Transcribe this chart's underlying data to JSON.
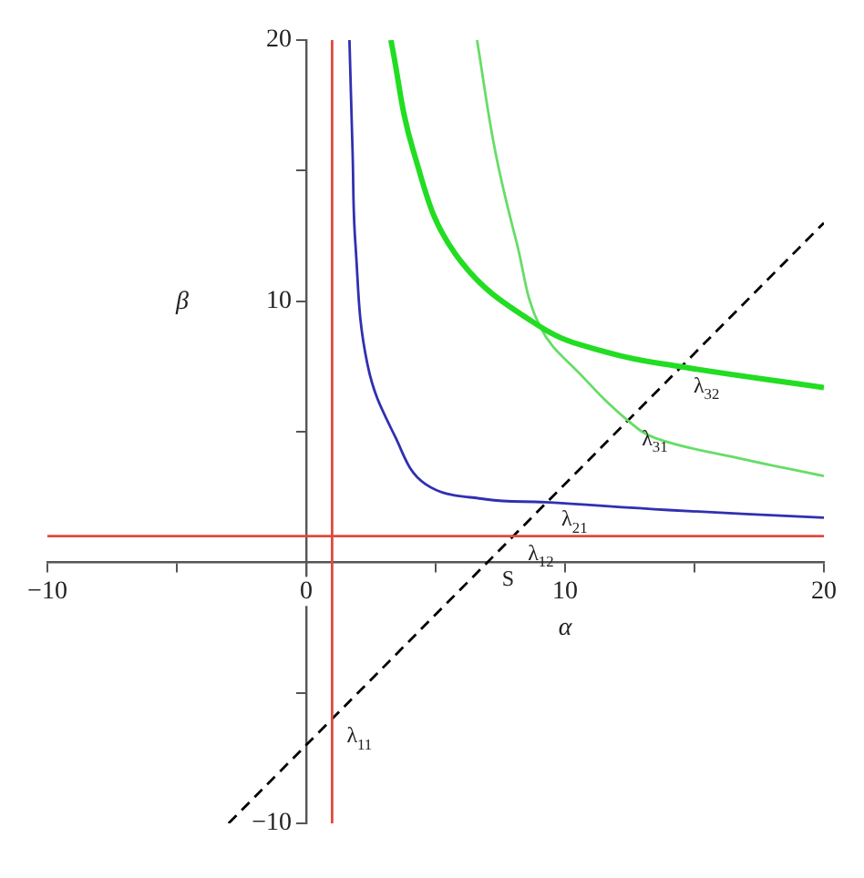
{
  "chart_data": {
    "type": "line",
    "xlabel": "α",
    "ylabel": "β",
    "marker": "none",
    "grid": false,
    "legend": false,
    "xlim": [
      -10,
      20
    ],
    "ylim": [
      -10,
      20
    ],
    "xticks": [
      {
        "value": -10,
        "label": "−10"
      },
      {
        "value": -5,
        "label": null
      },
      {
        "value": 0,
        "label": "0"
      },
      {
        "value": 5,
        "label": null
      },
      {
        "value": 10,
        "label": "10"
      },
      {
        "value": 15,
        "label": null
      },
      {
        "value": 20,
        "label": "20"
      }
    ],
    "yticks": [
      {
        "value": -10,
        "label": "−10"
      },
      {
        "value": -5,
        "label": null
      },
      {
        "value": 5,
        "label": null
      },
      {
        "value": 10,
        "label": "10"
      },
      {
        "value": 15,
        "label": null
      },
      {
        "value": 20,
        "label": "20"
      }
    ],
    "series": [
      {
        "color": "#e04a3c",
        "x": [
          1,
          1
        ],
        "values": [
          -10,
          20
        ]
      },
      {
        "color": "#e04a3c",
        "x": [
          -10,
          20
        ],
        "values": [
          1,
          1
        ]
      },
      {
        "color": "#3030b0",
        "x": [
          1.67,
          1.79,
          1.9,
          2.37,
          3.44,
          4.6,
          6.96,
          9.24,
          14.0,
          20
        ],
        "values": [
          20,
          15.75,
          12.2,
          7.56,
          4.8,
          3.0,
          2.41,
          2.3,
          2.0,
          1.71
        ]
      },
      {
        "color": "#22dd22",
        "x": [
          3.27,
          4.14,
          5.79,
          9.03,
          11.66,
          14.4,
          20
        ],
        "values": [
          20,
          15.75,
          11.77,
          9.03,
          8.03,
          7.5,
          6.69
        ]
      },
      {
        "color": "#66dd66",
        "x": [
          6.6,
          7.3,
          8.13,
          9.03,
          10.7,
          12.4,
          13.5,
          16.4,
          20
        ],
        "values": [
          20,
          15.75,
          12.24,
          9.03,
          7.09,
          5.45,
          4.75,
          4.05,
          3.3
        ]
      },
      {
        "color": "#000000",
        "line_style": "dashed",
        "x": [
          -3,
          20
        ],
        "values": [
          -10,
          13
        ]
      }
    ],
    "annotations": [
      {
        "text": "λ$_{11}$",
        "x": 1,
        "y": -6
      },
      {
        "text": "λ$_{12}$",
        "x": 8,
        "y": 1
      },
      {
        "text": "λ$_{21}$",
        "x": 9.3,
        "y": 2.3
      },
      {
        "text": "λ$_{31}$",
        "x": 12.4,
        "y": 5.4
      },
      {
        "text": "λ$_{32}$",
        "x": 14.4,
        "y": 7.4
      },
      {
        "text": "S",
        "x": 7,
        "y": 0
      }
    ]
  }
}
